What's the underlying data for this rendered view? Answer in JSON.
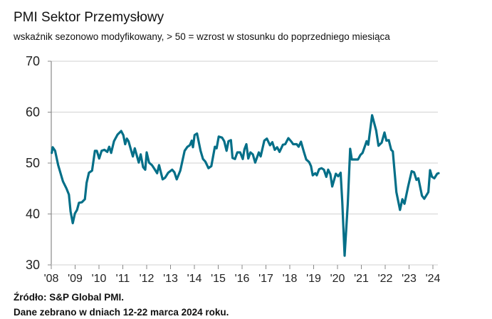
{
  "chart_data": {
    "type": "line",
    "title": "PMI Sektor Przemysłowy",
    "subtitle": "wskaźnik sezonowo modyfikowany, > 50 = wzrost w stosunku do poprzedniego miesiąca",
    "xlabel": "",
    "ylabel": "",
    "ylim": [
      30,
      70
    ],
    "xlim": [
      2008,
      2024.25
    ],
    "y_ticks": [
      "30",
      "40",
      "50",
      "60",
      "70"
    ],
    "x_ticks": [
      "'08",
      "'09",
      "'10",
      "'11",
      "'12",
      "'13",
      "'14",
      "'15",
      "'16",
      "'17",
      "'18",
      "'19",
      "'20",
      "'21",
      "'22",
      "'23",
      "'24"
    ],
    "grid": true,
    "line_color": "#046f88",
    "series": [
      {
        "name": "PMI",
        "points": [
          [
            2008.02,
            52.0
          ],
          [
            2008.06,
            53.1
          ],
          [
            2008.16,
            52.4
          ],
          [
            2008.29,
            49.6
          ],
          [
            2008.49,
            46.4
          ],
          [
            2008.64,
            45.0
          ],
          [
            2008.74,
            43.8
          ],
          [
            2008.81,
            40.5
          ],
          [
            2008.9,
            38.2
          ],
          [
            2008.99,
            40.1
          ],
          [
            2009.08,
            40.8
          ],
          [
            2009.16,
            42.2
          ],
          [
            2009.28,
            42.3
          ],
          [
            2009.41,
            42.9
          ],
          [
            2009.48,
            46.1
          ],
          [
            2009.58,
            48.1
          ],
          [
            2009.71,
            48.5
          ],
          [
            2009.83,
            52.4
          ],
          [
            2009.91,
            52.4
          ],
          [
            2010.01,
            50.9
          ],
          [
            2010.11,
            52.4
          ],
          [
            2010.23,
            52.6
          ],
          [
            2010.35,
            52.2
          ],
          [
            2010.43,
            53.2
          ],
          [
            2010.51,
            52.0
          ],
          [
            2010.63,
            54.3
          ],
          [
            2010.78,
            55.6
          ],
          [
            2010.93,
            56.3
          ],
          [
            2011.02,
            55.5
          ],
          [
            2011.1,
            53.7
          ],
          [
            2011.17,
            54.8
          ],
          [
            2011.24,
            54.3
          ],
          [
            2011.42,
            51.3
          ],
          [
            2011.5,
            52.9
          ],
          [
            2011.67,
            50.1
          ],
          [
            2011.75,
            51.7
          ],
          [
            2011.85,
            49.2
          ],
          [
            2011.94,
            48.7
          ],
          [
            2012.0,
            52.1
          ],
          [
            2012.1,
            50.1
          ],
          [
            2012.22,
            49.6
          ],
          [
            2012.32,
            48.9
          ],
          [
            2012.44,
            48.0
          ],
          [
            2012.52,
            49.6
          ],
          [
            2012.67,
            46.8
          ],
          [
            2012.77,
            47.1
          ],
          [
            2012.9,
            48.1
          ],
          [
            2013.07,
            48.7
          ],
          [
            2013.16,
            48.2
          ],
          [
            2013.26,
            46.8
          ],
          [
            2013.41,
            48.5
          ],
          [
            2013.59,
            52.4
          ],
          [
            2013.71,
            53.2
          ],
          [
            2013.81,
            53.5
          ],
          [
            2013.89,
            54.4
          ],
          [
            2013.94,
            53.1
          ],
          [
            2014.01,
            55.5
          ],
          [
            2014.11,
            55.8
          ],
          [
            2014.26,
            52.4
          ],
          [
            2014.36,
            50.8
          ],
          [
            2014.46,
            50.3
          ],
          [
            2014.59,
            49.0
          ],
          [
            2014.71,
            49.4
          ],
          [
            2014.86,
            53.2
          ],
          [
            2014.93,
            52.9
          ],
          [
            2015.02,
            55.2
          ],
          [
            2015.16,
            55.0
          ],
          [
            2015.25,
            54.3
          ],
          [
            2015.35,
            52.4
          ],
          [
            2015.43,
            54.3
          ],
          [
            2015.53,
            54.5
          ],
          [
            2015.6,
            51.0
          ],
          [
            2015.7,
            50.8
          ],
          [
            2015.8,
            52.1
          ],
          [
            2015.92,
            52.1
          ],
          [
            2016.03,
            50.8
          ],
          [
            2016.1,
            52.7
          ],
          [
            2016.18,
            53.7
          ],
          [
            2016.26,
            50.9
          ],
          [
            2016.35,
            52.1
          ],
          [
            2016.45,
            51.7
          ],
          [
            2016.55,
            50.1
          ],
          [
            2016.7,
            52.1
          ],
          [
            2016.78,
            51.3
          ],
          [
            2016.93,
            54.4
          ],
          [
            2017.04,
            54.8
          ],
          [
            2017.17,
            53.5
          ],
          [
            2017.27,
            54.1
          ],
          [
            2017.37,
            52.6
          ],
          [
            2017.47,
            53.1
          ],
          [
            2017.57,
            52.2
          ],
          [
            2017.71,
            53.6
          ],
          [
            2017.81,
            53.7
          ],
          [
            2017.94,
            54.9
          ],
          [
            2018.07,
            54.2
          ],
          [
            2018.14,
            53.7
          ],
          [
            2018.29,
            53.7
          ],
          [
            2018.37,
            53.2
          ],
          [
            2018.47,
            54.2
          ],
          [
            2018.59,
            52.2
          ],
          [
            2018.69,
            50.7
          ],
          [
            2018.81,
            50.2
          ],
          [
            2018.89,
            49.4
          ],
          [
            2018.96,
            47.6
          ],
          [
            2019.07,
            48.0
          ],
          [
            2019.13,
            47.6
          ],
          [
            2019.23,
            48.8
          ],
          [
            2019.33,
            49.0
          ],
          [
            2019.43,
            48.7
          ],
          [
            2019.53,
            47.3
          ],
          [
            2019.61,
            48.7
          ],
          [
            2019.7,
            47.8
          ],
          [
            2019.78,
            45.4
          ],
          [
            2019.93,
            47.9
          ],
          [
            2020.03,
            47.4
          ],
          [
            2020.13,
            48.1
          ],
          [
            2020.2,
            42.4
          ],
          [
            2020.3,
            31.8
          ],
          [
            2020.43,
            41.9
          ],
          [
            2020.53,
            52.8
          ],
          [
            2020.6,
            50.7
          ],
          [
            2020.7,
            50.7
          ],
          [
            2020.86,
            50.7
          ],
          [
            2020.96,
            51.6
          ],
          [
            2021.05,
            52.0
          ],
          [
            2021.17,
            53.6
          ],
          [
            2021.22,
            54.3
          ],
          [
            2021.29,
            53.6
          ],
          [
            2021.45,
            59.4
          ],
          [
            2021.62,
            56.4
          ],
          [
            2021.72,
            53.4
          ],
          [
            2021.85,
            54.0
          ],
          [
            2021.97,
            56.0
          ],
          [
            2022.05,
            54.4
          ],
          [
            2022.15,
            54.5
          ],
          [
            2022.25,
            52.6
          ],
          [
            2022.32,
            52.3
          ],
          [
            2022.47,
            44.3
          ],
          [
            2022.62,
            40.8
          ],
          [
            2022.72,
            42.9
          ],
          [
            2022.81,
            42.0
          ],
          [
            2022.96,
            45.4
          ],
          [
            2023.11,
            48.4
          ],
          [
            2023.21,
            48.2
          ],
          [
            2023.31,
            46.7
          ],
          [
            2023.39,
            47.0
          ],
          [
            2023.54,
            43.6
          ],
          [
            2023.64,
            43.0
          ],
          [
            2023.81,
            44.3
          ],
          [
            2023.88,
            48.6
          ],
          [
            2023.96,
            47.3
          ],
          [
            2024.06,
            47.0
          ],
          [
            2024.18,
            47.9
          ],
          [
            2024.24,
            48.0
          ]
        ]
      }
    ]
  },
  "footer": {
    "source": "Źródło: S&P Global PMI.",
    "note": "Dane zebrano w dniach 12-22 marca 2024 roku."
  }
}
